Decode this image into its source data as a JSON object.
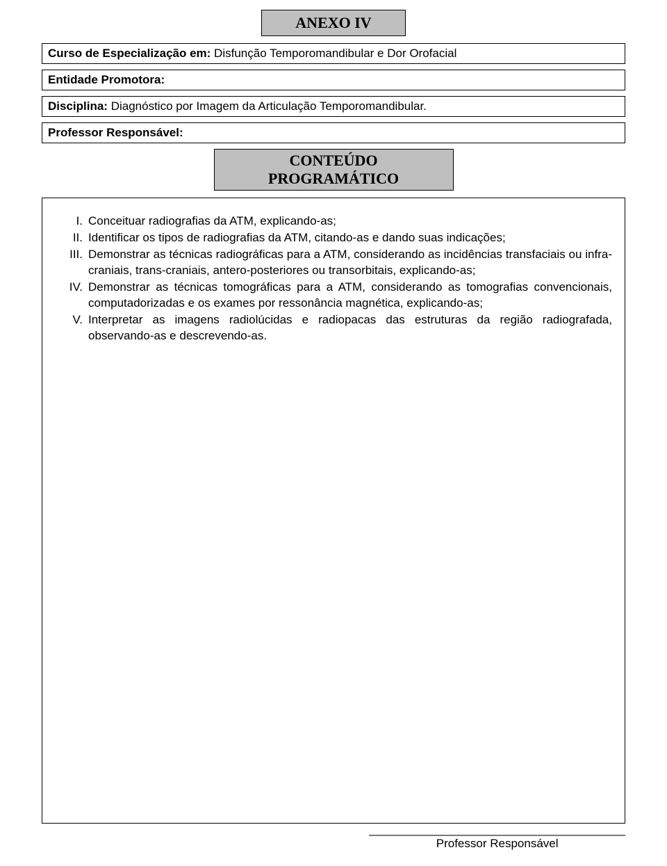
{
  "colors": {
    "page_bg": "#ffffff",
    "box_bg": "#bfbfbf",
    "border": "#000000",
    "text": "#000000"
  },
  "typography": {
    "body_font": "Verdana, Geneva, sans-serif",
    "heading_font": "\"Times New Roman\", Times, serif",
    "body_size_pt": 13,
    "heading_size_pt": 16
  },
  "anexo": "ANEXO  IV",
  "fields": {
    "curso": {
      "label": "Curso de Especialização em:",
      "value": " Disfunção Temporomandibular e Dor Orofacial"
    },
    "entidade": {
      "label": "Entidade Promotora:",
      "value": ""
    },
    "disciplina": {
      "label": "Disciplina:",
      "value": " Diagnóstico por Imagem da Articulação Temporomandibular."
    },
    "professor": {
      "label": "Professor Responsável:",
      "value": ""
    }
  },
  "conteudo_title": "CONTEÚDO PROGRAMÁTICO",
  "items": [
    {
      "num": "I.",
      "text": "Conceituar radiografias da ATM, explicando-as;"
    },
    {
      "num": "II.",
      "text": "Identificar os tipos de radiografias da ATM, citando-as e dando suas indicações;"
    },
    {
      "num": "III.",
      "text": "Demonstrar as técnicas radiográficas para a ATM, considerando as incidências transfaciais ou infra-craniais, trans-craniais, antero-posteriores ou transorbitais, explicando-as;"
    },
    {
      "num": "IV.",
      "text": "Demonstrar as técnicas tomográficas para a ATM, considerando as tomografias convencionais, computadorizadas e os exames por ressonância magnética, explicando-as;"
    },
    {
      "num": "V.",
      "text": "Interpretar as imagens radiolúcidas e radiopacas das estruturas da região radiografada, observando-as e descrevendo-as."
    }
  ],
  "signature": {
    "line": "_______________________________________",
    "label": "Professor Responsável"
  }
}
